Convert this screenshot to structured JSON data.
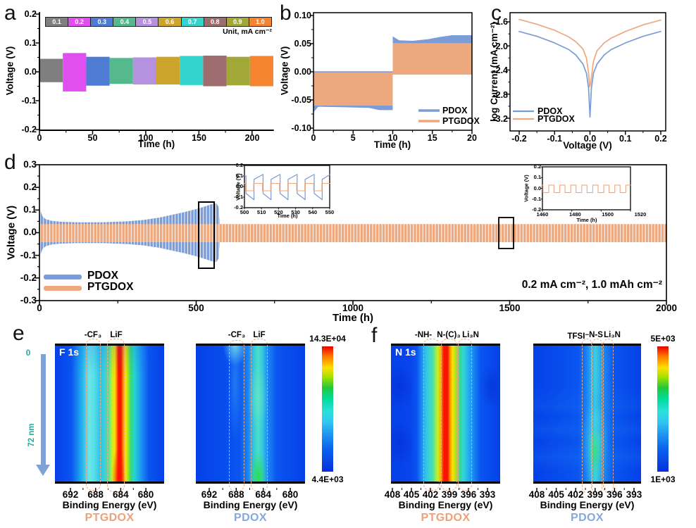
{
  "colors": {
    "pdox": "#7B9CD4",
    "ptgdox": "#EDA87E",
    "heat_background": "#0540E8",
    "dashed_box": "#F2A878",
    "depth_teal": "#1FAF9F"
  },
  "panels": {
    "a": {
      "letter": "a",
      "ylabel": "Voltage (V)",
      "xlabel": "Time (h)",
      "unit_note": "Unit, mA cm⁻²",
      "y_ticks": [
        "0.2",
        "0.1",
        "0.0",
        "-0.1",
        "-0.2"
      ],
      "x_ticks": [
        "0",
        "50",
        "100",
        "150",
        "200"
      ],
      "rate_legend": [
        {
          "label": "0.1",
          "color": "#7F7F7F"
        },
        {
          "label": "0.2",
          "color": "#E14FF0"
        },
        {
          "label": "0.3",
          "color": "#4E7BD4"
        },
        {
          "label": "0.4",
          "color": "#55B98D"
        },
        {
          "label": "0.5",
          "color": "#B591E0"
        },
        {
          "label": "0.6",
          "color": "#CDA42C"
        },
        {
          "label": "0.7",
          "color": "#35D3CD"
        },
        {
          "label": "0.8",
          "color": "#9E6B6E"
        },
        {
          "label": "0.9",
          "color": "#A2A838"
        },
        {
          "label": "1.0",
          "color": "#F58430"
        }
      ]
    },
    "b": {
      "letter": "b",
      "ylabel": "Voltage (V)",
      "xlabel": "Time (h)",
      "y_ticks": [
        "0.10",
        "0.05",
        "0.00",
        "-0.05",
        "-0.10"
      ],
      "x_ticks": [
        "0",
        "5",
        "10",
        "15",
        "20"
      ],
      "legend": {
        "pdox": "PDOX",
        "ptgdox": "PTGDOX"
      }
    },
    "c": {
      "letter": "c",
      "ylabel": "log Current (mA cm⁻²)",
      "xlabel": "Voltage (V)",
      "y_ticks": [
        "-1.6",
        "-2.0",
        "-2.4",
        "-2.8",
        "-3.2"
      ],
      "x_ticks": [
        "-0.2",
        "-0.1",
        "0.0",
        "0.1",
        "0.2"
      ],
      "legend": {
        "pdox": "PDOX",
        "ptgdox": "PTGDOX"
      }
    },
    "d": {
      "letter": "d",
      "ylabel": "Voltage (V)",
      "xlabel": "Time (h)",
      "y_ticks": [
        "0.3",
        "0.2",
        "0.1",
        "0.0",
        "-0.1",
        "-0.2",
        "-0.3"
      ],
      "x_ticks": [
        "0",
        "500",
        "1000",
        "1500",
        "2000"
      ],
      "legend": {
        "pdox": "PDOX",
        "ptgdox": "PTGDOX"
      },
      "annotation": "0.2 mA cm⁻², 1.0 mAh cm⁻²",
      "inset1": {
        "ylabel": "Voltage (V)",
        "xlabel": "Time (h)",
        "y_ticks": [
          "0.2",
          "0.1",
          "0.0",
          "-0.1",
          "-0.2"
        ],
        "x_ticks": [
          "500",
          "510",
          "520",
          "530",
          "540",
          "550"
        ]
      },
      "inset2": {
        "ylabel": "Voltage (V)",
        "xlabel": "Time (h)",
        "y_ticks": [
          "0.2",
          "0.1",
          "0.0",
          "-0.1",
          "-0.2"
        ],
        "x_ticks": [
          "1460",
          "1480",
          "1500",
          "1520"
        ]
      }
    },
    "e": {
      "letter": "e",
      "core": "F 1s",
      "xlabel": "Binding Energy (eV)",
      "x_ticks": [
        "692",
        "688",
        "684",
        "680"
      ],
      "depth_top": "0",
      "depth_bottom": "72 nm",
      "colorbar_max": "14.3E+04",
      "colorbar_min": "4.4E+03",
      "maps": [
        {
          "sample": "PTGDOX",
          "peak1": "-CF₃",
          "peak2": "LiF"
        },
        {
          "sample": "PDOX",
          "peak1": "-CF₃",
          "peak2": "LiF"
        }
      ]
    },
    "f": {
      "letter": "f",
      "core": "N 1s",
      "xlabel": "Binding Energy (eV)",
      "x_ticks": [
        "408",
        "405",
        "402",
        "399",
        "396",
        "393"
      ],
      "colorbar_max": "5E+03",
      "colorbar_min": "1E+03",
      "maps": [
        {
          "sample": "PTGDOX",
          "peak1": "-NH-",
          "peak2": "N-(C)₃",
          "peak3": "Li₃N"
        },
        {
          "sample": "PDOX",
          "peak1": "TFSI⁻",
          "peak2": "N-S",
          "peak3": "Li₃N"
        }
      ]
    }
  },
  "chart_data": [
    {
      "panel": "a",
      "type": "area",
      "xlabel": "Time (h)",
      "ylabel": "Voltage (V)",
      "xlim": [
        0,
        220
      ],
      "ylim": [
        -0.2,
        0.2
      ],
      "unit_note": "Unit, mA cm⁻²",
      "segments": [
        {
          "rate": "0.1",
          "t": [
            0,
            22
          ],
          "v_upper": 0.045,
          "v_lower": -0.036,
          "color": "#7F7F7F"
        },
        {
          "rate": "0.2",
          "t": [
            22,
            44
          ],
          "v_upper": 0.065,
          "v_lower": -0.068,
          "color": "#E14FF0"
        },
        {
          "rate": "0.3",
          "t": [
            44,
            66
          ],
          "v_upper": 0.052,
          "v_lower": -0.048,
          "color": "#4E7BD4"
        },
        {
          "rate": "0.4",
          "t": [
            66,
            88
          ],
          "v_upper": 0.048,
          "v_lower": -0.042,
          "color": "#55B98D"
        },
        {
          "rate": "0.5",
          "t": [
            88,
            110
          ],
          "v_upper": 0.05,
          "v_lower": -0.044,
          "color": "#B591E0"
        },
        {
          "rate": "0.6",
          "t": [
            110,
            132
          ],
          "v_upper": 0.052,
          "v_lower": -0.044,
          "color": "#CDA42C"
        },
        {
          "rate": "0.7",
          "t": [
            132,
            154
          ],
          "v_upper": 0.055,
          "v_lower": -0.046,
          "color": "#35D3CD"
        },
        {
          "rate": "0.8",
          "t": [
            154,
            176
          ],
          "v_upper": 0.056,
          "v_lower": -0.05,
          "color": "#9E6B6E"
        },
        {
          "rate": "0.9",
          "t": [
            176,
            198
          ],
          "v_upper": 0.052,
          "v_lower": -0.047,
          "color": "#A2A838"
        },
        {
          "rate": "1.0",
          "t": [
            198,
            220
          ],
          "v_upper": 0.055,
          "v_lower": -0.05,
          "color": "#F58430"
        }
      ]
    },
    {
      "panel": "b",
      "type": "area",
      "xlabel": "Time (h)",
      "ylabel": "Voltage (V)",
      "xlim": [
        0,
        20
      ],
      "ylim": [
        -0.1,
        0.1
      ],
      "series": [
        {
          "name": "PDOX",
          "color": "#7B9CD4",
          "bands": [
            {
              "upper": [
                [
                  0,
                  0.001
                ],
                [
                  10,
                  0.001
                ]
              ],
              "lower": [
                [
                  0,
                  -0.072
                ],
                [
                  0.6,
                  -0.062
                ],
                [
                  4,
                  -0.063
                ],
                [
                  7,
                  -0.064
                ],
                [
                  8.3,
                  -0.068
                ],
                [
                  10,
                  -0.068
                ]
              ]
            },
            {
              "upper": [
                [
                  10,
                  0.063
                ],
                [
                  10.8,
                  0.056
                ],
                [
                  12.5,
                  0.055
                ],
                [
                  14.5,
                  0.058
                ],
                [
                  16,
                  0.062
                ],
                [
                  17.5,
                  0.065
                ],
                [
                  20,
                  0.065
                ]
              ],
              "lower": [
                [
                  10,
                  -0.003
                ],
                [
                  20,
                  -0.003
                ]
              ]
            }
          ]
        },
        {
          "name": "PTGDOX",
          "color": "#EDA87E",
          "bands": [
            {
              "upper": [
                [
                  0,
                  -0.001
                ],
                [
                  10,
                  -0.001
                ]
              ],
              "lower": [
                [
                  0,
                  -0.06
                ],
                [
                  10,
                  -0.06
                ]
              ]
            },
            {
              "upper": [
                [
                  10,
                  0.051
                ],
                [
                  20,
                  0.051
                ]
              ],
              "lower": [
                [
                  10,
                  -0.005
                ],
                [
                  20,
                  -0.005
                ]
              ]
            }
          ]
        }
      ]
    },
    {
      "panel": "c",
      "type": "line",
      "xlabel": "Voltage (V)",
      "ylabel": "log Current (mA cm⁻²)",
      "xlim": [
        -0.2,
        0.2
      ],
      "ylim": [
        -3.4,
        -1.4
      ],
      "y_ticks": [
        -1.6,
        -2.0,
        -2.4,
        -2.8,
        -3.2
      ],
      "series": [
        {
          "name": "PDOX",
          "color": "#7B9CD4",
          "points": [
            [
              -0.2,
              -1.76
            ],
            [
              -0.15,
              -1.84
            ],
            [
              -0.1,
              -1.95
            ],
            [
              -0.06,
              -2.06
            ],
            [
              -0.04,
              -2.15
            ],
            [
              -0.02,
              -2.3
            ],
            [
              -0.01,
              -2.45
            ],
            [
              -0.004,
              -2.7
            ],
            [
              0,
              -3.18
            ],
            [
              0.004,
              -2.7
            ],
            [
              0.01,
              -2.45
            ],
            [
              0.02,
              -2.3
            ],
            [
              0.04,
              -2.15
            ],
            [
              0.06,
              -2.06
            ],
            [
              0.1,
              -1.95
            ],
            [
              0.15,
              -1.84
            ],
            [
              0.2,
              -1.76
            ]
          ]
        },
        {
          "name": "PTGDOX",
          "color": "#EDA87E",
          "points": [
            [
              -0.2,
              -1.56
            ],
            [
              -0.15,
              -1.64
            ],
            [
              -0.1,
              -1.74
            ],
            [
              -0.06,
              -1.85
            ],
            [
              -0.04,
              -1.93
            ],
            [
              -0.02,
              -2.05
            ],
            [
              -0.01,
              -2.2
            ],
            [
              -0.004,
              -2.45
            ],
            [
              -0.001,
              -2.68
            ],
            [
              0.002,
              -2.62
            ],
            [
              0.01,
              -2.25
            ],
            [
              0.02,
              -2.08
            ],
            [
              0.04,
              -1.95
            ],
            [
              0.06,
              -1.87
            ],
            [
              0.1,
              -1.76
            ],
            [
              0.15,
              -1.65
            ],
            [
              0.2,
              -1.57
            ]
          ]
        }
      ]
    },
    {
      "panel": "d",
      "type": "area",
      "xlabel": "Time (h)",
      "ylabel": "Voltage (V)",
      "xlim": [
        0,
        2000
      ],
      "ylim": [
        -0.3,
        0.3
      ],
      "annotation": "0.2 mA cm⁻², 1.0 mAh cm⁻²",
      "series": [
        {
          "name": "PDOX",
          "color": "#7B9CD4",
          "fail_hour": 576,
          "envelope_upper": [
            [
              0,
              0.02
            ],
            [
              2,
              0.105
            ],
            [
              5,
              0.09
            ],
            [
              10,
              0.072
            ],
            [
              20,
              0.06
            ],
            [
              40,
              0.052
            ],
            [
              70,
              0.048
            ],
            [
              120,
              0.046
            ],
            [
              200,
              0.046
            ],
            [
              280,
              0.05
            ],
            [
              330,
              0.056
            ],
            [
              380,
              0.066
            ],
            [
              420,
              0.078
            ],
            [
              460,
              0.09
            ],
            [
              500,
              0.104
            ],
            [
              530,
              0.117
            ],
            [
              552,
              0.127
            ],
            [
              564,
              0.13
            ],
            [
              571,
              0.115
            ],
            [
              575,
              0.06
            ],
            [
              576,
              0.01
            ]
          ]
        },
        {
          "name": "PTGDOX",
          "color": "#EDA87E",
          "t": [
            0,
            2000
          ],
          "v_upper": 0.038,
          "v_lower": -0.042
        }
      ],
      "insets": [
        {
          "xlim": [
            500,
            550
          ],
          "ylim": [
            -0.2,
            0.2
          ],
          "series": [
            "PDOX",
            "PTGDOX"
          ],
          "pdox_amplitude": [
            0.07,
            0.125
          ],
          "ptgdox_amplitude": [
            0.03,
            0.04
          ],
          "period_h": 10
        },
        {
          "xlim": [
            1460,
            1520
          ],
          "ylim": [
            -0.2,
            0.2
          ],
          "series": [
            "PTGDOX"
          ],
          "ptgdox_amplitude": [
            0.03,
            0.04
          ],
          "period_h": 7.5
        }
      ]
    },
    {
      "panel": "e",
      "type": "heatmap",
      "core_level": "F 1s",
      "xlabel": "Binding Energy (eV)",
      "x_ticks": [
        692,
        688,
        684,
        680
      ],
      "x_range_ev": [
        694.5,
        677
      ],
      "depth_nm": [
        0,
        72
      ],
      "colorbar": {
        "max": "14.3E+04",
        "min": "4.4E+03"
      },
      "maps": [
        {
          "sample": "PTGDOX",
          "peaks": [
            {
              "label": "-CF₃",
              "ev": 688.5
            },
            {
              "label": "LiF",
              "ev": 684.8
            }
          ],
          "relative_intensity": "strong LiF band through full depth"
        },
        {
          "sample": "PDOX",
          "peaks": [
            {
              "label": "-CF₃",
              "ev": 688.5
            },
            {
              "label": "LiF",
              "ev": 684.8
            }
          ],
          "relative_intensity": "weak-moderate LiF band"
        }
      ]
    },
    {
      "panel": "f",
      "type": "heatmap",
      "core_level": "N 1s",
      "xlabel": "Binding Energy (eV)",
      "x_ticks": [
        408,
        405,
        402,
        399,
        396,
        393
      ],
      "x_range_ev": [
        408.2,
        391
      ],
      "depth_nm": [
        0,
        72
      ],
      "colorbar": {
        "max": "5E+03",
        "min": "1E+03"
      },
      "maps": [
        {
          "sample": "PTGDOX",
          "peaks": [
            {
              "label": "-NH-",
              "ev": 402.5
            },
            {
              "label": "N-(C)₃",
              "ev": 399.8
            },
            {
              "label": "Li₃N",
              "ev": 397.5
            }
          ],
          "relative_intensity": "strong N-(C)₃ band through full depth"
        },
        {
          "sample": "PDOX",
          "peaks": [
            {
              "label": "TFSI⁻",
              "ev": 400.3
            },
            {
              "label": "N-S",
              "ev": 398.8
            },
            {
              "label": "Li₃N",
              "ev": 397
            }
          ],
          "relative_intensity": "weak band, stronger in lower half"
        }
      ]
    }
  ]
}
